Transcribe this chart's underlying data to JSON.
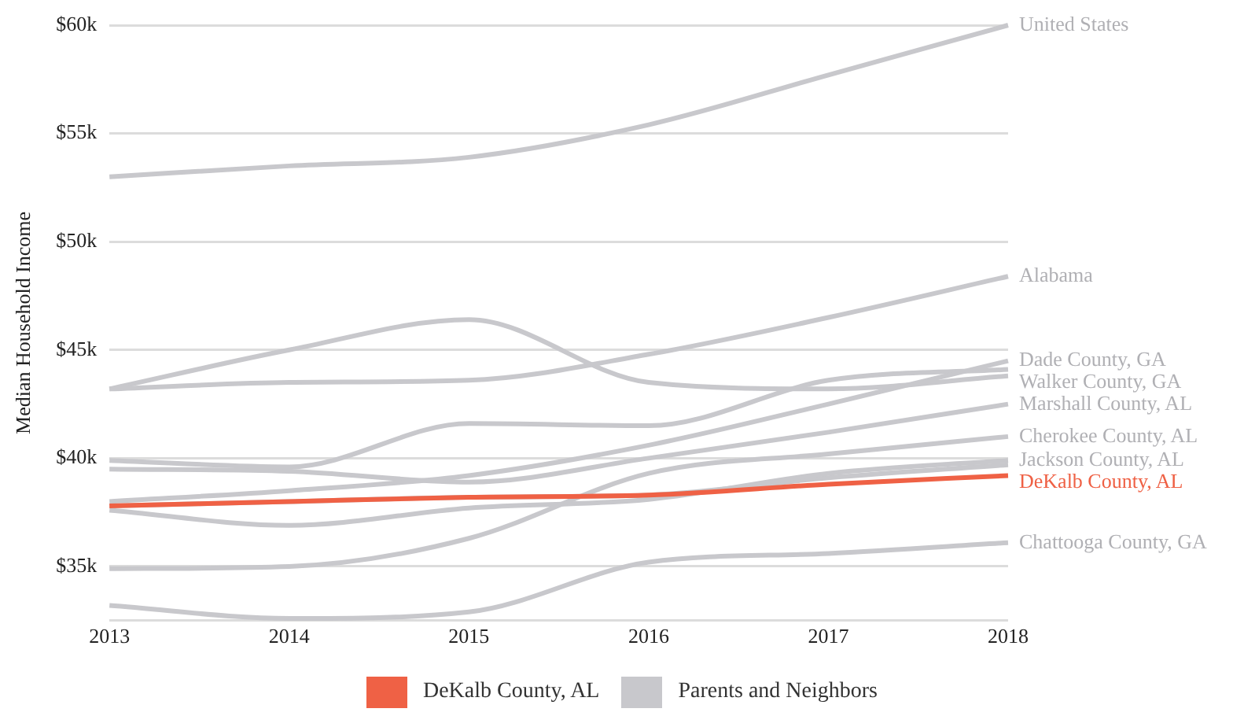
{
  "chart_data": {
    "type": "line",
    "ylabel": "Median Household Income",
    "x": [
      2013,
      2014,
      2015,
      2016,
      2017,
      2018
    ],
    "xlim": [
      2013,
      2018
    ],
    "xticks": [
      2013,
      2014,
      2015,
      2016,
      2017,
      2018
    ],
    "ylim": [
      32500,
      60000
    ],
    "yticks": [
      {
        "value": 32500,
        "label": null
      },
      {
        "value": 35000,
        "label": "$35k"
      },
      {
        "value": 40000,
        "label": "$40k"
      },
      {
        "value": 45000,
        "label": "$45k"
      },
      {
        "value": 50000,
        "label": "$50k"
      },
      {
        "value": 55000,
        "label": "$55k"
      },
      {
        "value": 60000,
        "label": "$60k"
      }
    ],
    "grid": "y",
    "legend": "bottom",
    "marker": "none",
    "line_style": "solid",
    "series": [
      {
        "name": "United States",
        "color": "#c8c8cc",
        "values": [
          53000,
          53500,
          53900,
          55400,
          57700,
          60000
        ]
      },
      {
        "name": "Alabama",
        "color": "#c8c8cc",
        "values": [
          43200,
          43500,
          43600,
          44800,
          46500,
          48400
        ]
      },
      {
        "name": "Dade County, GA",
        "color": "#c8c8cc",
        "values": [
          38000,
          38500,
          39200,
          40600,
          42500,
          44500
        ]
      },
      {
        "color": "#c8c8cc",
        "values": [
          39900,
          39600,
          41600,
          41500,
          43600,
          44100
        ]
      },
      {
        "name": "Walker County, GA",
        "color": "#c8c8cc",
        "values": [
          43200,
          45000,
          46400,
          43500,
          43200,
          43800
        ]
      },
      {
        "name": "Marshall County, AL",
        "color": "#c8c8cc",
        "values": [
          39500,
          39400,
          38900,
          40000,
          41200,
          42500
        ]
      },
      {
        "name": "Cherokee County, AL",
        "color": "#c8c8cc",
        "values": [
          34900,
          35000,
          36300,
          39300,
          40200,
          41000
        ]
      },
      {
        "name": "Jackson County, AL",
        "color": "#c8c8cc",
        "values": [
          37600,
          36900,
          37700,
          38100,
          39300,
          39900
        ]
      },
      {
        "color": "#c8c8cc",
        "values": [
          37800,
          38000,
          38200,
          38300,
          39100,
          39700
        ]
      },
      {
        "name": "Chattooga County, GA",
        "color": "#c8c8cc",
        "values": [
          33200,
          32600,
          32900,
          35200,
          35600,
          36100
        ]
      },
      {
        "name": "DeKalb County, AL",
        "color": "#ef6145",
        "values": [
          37800,
          38000,
          38200,
          38300,
          38800,
          39200
        ]
      }
    ],
    "annotations": [
      "Parents and Neighbors"
    ]
  }
}
